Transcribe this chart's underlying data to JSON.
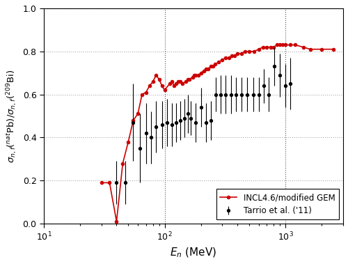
{
  "title": "",
  "xlabel": "$E_n$ (MeV)",
  "ylabel": "$\\sigma_{n,f}(^{nat}\\mathrm{Pb})/\\sigma_{n,f}(^{209}\\mathrm{Bi})$",
  "xlim": [
    10,
    3000
  ],
  "ylim": [
    0.0,
    1.0
  ],
  "yticks": [
    0.0,
    0.2,
    0.4,
    0.6,
    0.8,
    1.0
  ],
  "legend_loc": "lower right",
  "incl_x": [
    30,
    35,
    40,
    45,
    50,
    55,
    60,
    65,
    70,
    75,
    80,
    85,
    90,
    95,
    100,
    110,
    115,
    120,
    125,
    130,
    135,
    140,
    150,
    155,
    160,
    170,
    175,
    180,
    190,
    200,
    210,
    220,
    230,
    240,
    250,
    260,
    280,
    300,
    320,
    340,
    360,
    380,
    400,
    430,
    460,
    500,
    550,
    600,
    650,
    700,
    750,
    800,
    850,
    900,
    950,
    1000,
    1100,
    1200,
    1400,
    1600,
    2000,
    2500
  ],
  "incl_y": [
    0.19,
    0.19,
    0.01,
    0.28,
    0.38,
    0.48,
    0.51,
    0.6,
    0.61,
    0.64,
    0.66,
    0.69,
    0.67,
    0.64,
    0.62,
    0.65,
    0.66,
    0.64,
    0.65,
    0.66,
    0.66,
    0.65,
    0.66,
    0.67,
    0.67,
    0.68,
    0.69,
    0.69,
    0.69,
    0.7,
    0.71,
    0.72,
    0.72,
    0.73,
    0.73,
    0.74,
    0.75,
    0.76,
    0.77,
    0.77,
    0.78,
    0.78,
    0.79,
    0.79,
    0.8,
    0.8,
    0.8,
    0.81,
    0.82,
    0.82,
    0.82,
    0.82,
    0.83,
    0.83,
    0.83,
    0.83,
    0.83,
    0.83,
    0.82,
    0.81,
    0.81,
    0.81
  ],
  "exp_x": [
    40,
    47,
    55,
    62,
    70,
    77,
    85,
    95,
    105,
    115,
    125,
    135,
    145,
    155,
    165,
    180,
    200,
    220,
    240,
    265,
    290,
    320,
    355,
    390,
    430,
    480,
    540,
    600,
    660,
    730,
    810,
    900,
    1000,
    1100
  ],
  "exp_y": [
    0.19,
    0.19,
    0.47,
    0.35,
    0.42,
    0.4,
    0.45,
    0.46,
    0.47,
    0.46,
    0.47,
    0.48,
    0.49,
    0.51,
    0.49,
    0.47,
    0.54,
    0.47,
    0.48,
    0.6,
    0.6,
    0.6,
    0.6,
    0.6,
    0.6,
    0.6,
    0.6,
    0.6,
    0.64,
    0.6,
    0.73,
    0.69,
    0.64,
    0.65
  ],
  "exp_yerr_lo": [
    0.1,
    0.1,
    0.18,
    0.16,
    0.14,
    0.12,
    0.12,
    0.11,
    0.11,
    0.1,
    0.09,
    0.09,
    0.09,
    0.09,
    0.08,
    0.09,
    0.09,
    0.09,
    0.09,
    0.08,
    0.09,
    0.09,
    0.09,
    0.08,
    0.08,
    0.08,
    0.08,
    0.08,
    0.08,
    0.08,
    0.09,
    0.1,
    0.1,
    0.12
  ],
  "exp_yerr_hi": [
    0.1,
    0.1,
    0.18,
    0.16,
    0.14,
    0.12,
    0.12,
    0.11,
    0.11,
    0.1,
    0.09,
    0.09,
    0.09,
    0.09,
    0.08,
    0.09,
    0.09,
    0.09,
    0.09,
    0.08,
    0.09,
    0.09,
    0.09,
    0.08,
    0.08,
    0.08,
    0.08,
    0.08,
    0.08,
    0.08,
    0.09,
    0.1,
    0.1,
    0.12
  ],
  "line_color": "#cc0000",
  "exp_color": "black",
  "bg_color": "white",
  "grid_color": "#aaaaaa",
  "vline_x1": 100,
  "vline_x2": 1000
}
